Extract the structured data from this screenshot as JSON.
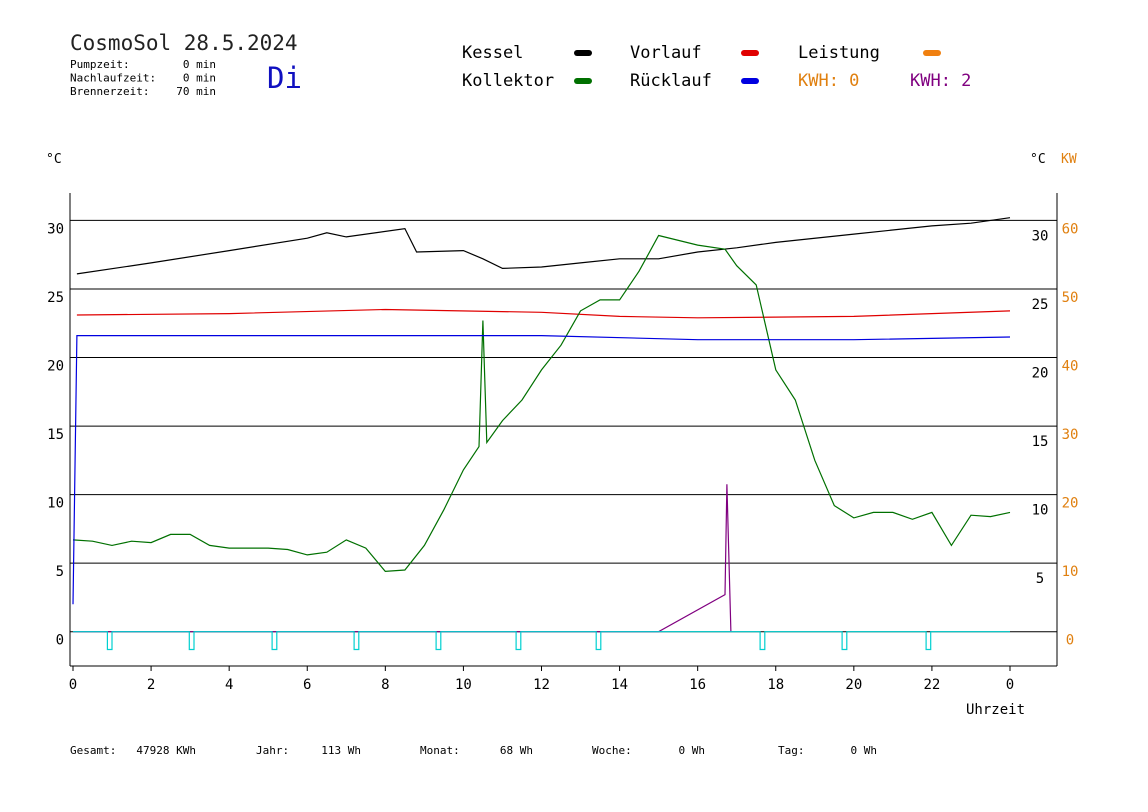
{
  "header": {
    "title": "CosmoSol 28.5.2024",
    "day": "Di",
    "info": [
      {
        "label": "Pumpzeit:",
        "value": "0 min"
      },
      {
        "label": "Nachlaufzeit:",
        "value": "0 min"
      },
      {
        "label": "Brennerzeit:",
        "value": "70 min"
      }
    ]
  },
  "kwh_labels": [
    {
      "text": "KWH: 0",
      "color": "#e08010"
    },
    {
      "text": "KWH: 2",
      "color": "#800080"
    }
  ],
  "footer": [
    {
      "label": "Gesamt:",
      "value": "47928 KWh"
    },
    {
      "label": "Jahr:",
      "value": "113 Wh"
    },
    {
      "label": "Monat:",
      "value": "68 Wh"
    },
    {
      "label": "Woche:",
      "value": "0 Wh"
    },
    {
      "label": "Tag:",
      "value": "0 Wh"
    }
  ],
  "chart_data": {
    "type": "line",
    "y_label": "°C",
    "y2_label_c": "°C",
    "y2_label": "KW",
    "x_label": "Uhrzeit",
    "xlim": [
      0,
      24
    ],
    "xticks": [
      0,
      2,
      4,
      6,
      8,
      10,
      12,
      14,
      16,
      18,
      20,
      22,
      {
        "value": 24,
        "label": "0"
      }
    ],
    "ylim": [
      -2.5,
      32
    ],
    "yticks": [
      0,
      5,
      10,
      15,
      20,
      25,
      30
    ],
    "y_right_ticks": [
      5,
      10,
      15,
      20,
      25,
      30
    ],
    "y2lim": [
      -5,
      64
    ],
    "y2ticks": [
      0,
      10,
      20,
      30,
      40,
      50,
      60
    ],
    "grid": true,
    "series": [
      {
        "name": "Kessel",
        "color": "#000000",
        "x": [
          0.1,
          2,
          4,
          6,
          6.5,
          7,
          8.5,
          8.8,
          10,
          10.5,
          11,
          12,
          13,
          14,
          15,
          16,
          17,
          18,
          20,
          22,
          23,
          24
        ],
        "values": [
          26.1,
          26.9,
          27.8,
          28.7,
          29.1,
          28.8,
          29.4,
          27.7,
          27.8,
          27.2,
          26.5,
          26.6,
          26.9,
          27.2,
          27.2,
          27.7,
          28.0,
          28.4,
          29.0,
          29.6,
          29.8,
          30.2
        ]
      },
      {
        "name": "Vorlauf",
        "color": "#e00000",
        "x": [
          0.1,
          4,
          8,
          12,
          14,
          16,
          20,
          24
        ],
        "values": [
          23.1,
          23.2,
          23.5,
          23.3,
          23.0,
          22.9,
          23.0,
          23.4
        ]
      },
      {
        "name": "Leistung",
        "color": "#f08010",
        "x": [],
        "values": []
      },
      {
        "name": "Kollektor",
        "color": "#007000",
        "x": [
          0,
          0.5,
          1,
          1.5,
          2,
          2.5,
          3,
          3.5,
          4,
          4.5,
          5,
          5.5,
          6,
          6.5,
          7,
          7.5,
          8,
          8.5,
          9,
          9.5,
          10,
          10.4,
          10.5,
          10.6,
          11,
          11.5,
          12,
          12.5,
          13,
          13.5,
          14,
          14.5,
          15,
          16,
          16.7,
          17,
          17.5,
          18,
          18.5,
          19,
          19.5,
          20,
          20.5,
          21,
          21.5,
          22,
          22.5,
          23,
          23.5,
          24
        ],
        "values": [
          6.7,
          6.6,
          6.3,
          6.6,
          6.5,
          7.1,
          7.1,
          6.3,
          6.1,
          6.1,
          6.1,
          6.0,
          5.6,
          5.8,
          6.7,
          6.1,
          4.4,
          4.5,
          6.3,
          8.9,
          11.8,
          13.5,
          22.7,
          13.8,
          15.4,
          16.9,
          19.1,
          20.9,
          23.4,
          24.2,
          24.2,
          26.3,
          28.9,
          28.2,
          27.9,
          26.7,
          25.3,
          19.1,
          16.9,
          12.5,
          9.2,
          8.3,
          8.7,
          8.7,
          8.2,
          8.7,
          6.3,
          8.5,
          8.4,
          8.7
        ]
      },
      {
        "name": "Rücklauf",
        "color": "#0000e0",
        "x": [
          0,
          0.1,
          4,
          8,
          12,
          16,
          20,
          24
        ],
        "values": [
          2.0,
          21.6,
          21.6,
          21.6,
          21.6,
          21.3,
          21.3,
          21.5
        ]
      },
      {
        "color": "#800080",
        "axis": "y2",
        "x": [
          0,
          15,
          16.7,
          16.75,
          16.85
        ],
        "values": [
          0,
          0,
          5.4,
          21.5,
          0
        ]
      },
      {
        "color": "#00d0d0",
        "x": [
          0,
          0.88,
          0.88,
          1.0,
          1.0,
          2.98,
          2.98,
          3.1,
          3.1,
          5.1,
          5.1,
          5.22,
          5.22,
          7.2,
          7.2,
          7.32,
          7.32,
          9.3,
          9.3,
          9.42,
          9.42,
          11.35,
          11.35,
          11.47,
          11.47,
          13.4,
          13.4,
          13.52,
          13.52,
          17.6,
          17.6,
          17.72,
          17.72,
          19.7,
          19.7,
          19.82,
          19.82,
          21.85,
          21.85,
          21.97,
          21.97,
          24
        ],
        "values": [
          0,
          0,
          -1.3,
          -1.3,
          0,
          0,
          -1.3,
          -1.3,
          0,
          0,
          -1.3,
          -1.3,
          0,
          0,
          -1.3,
          -1.3,
          0,
          0,
          -1.3,
          -1.3,
          0,
          0,
          -1.3,
          -1.3,
          0,
          0,
          -1.3,
          -1.3,
          0,
          0,
          -1.3,
          -1.3,
          0,
          0,
          -1.3,
          -1.3,
          0,
          0,
          -1.3,
          -1.3,
          0,
          0
        ]
      }
    ]
  }
}
